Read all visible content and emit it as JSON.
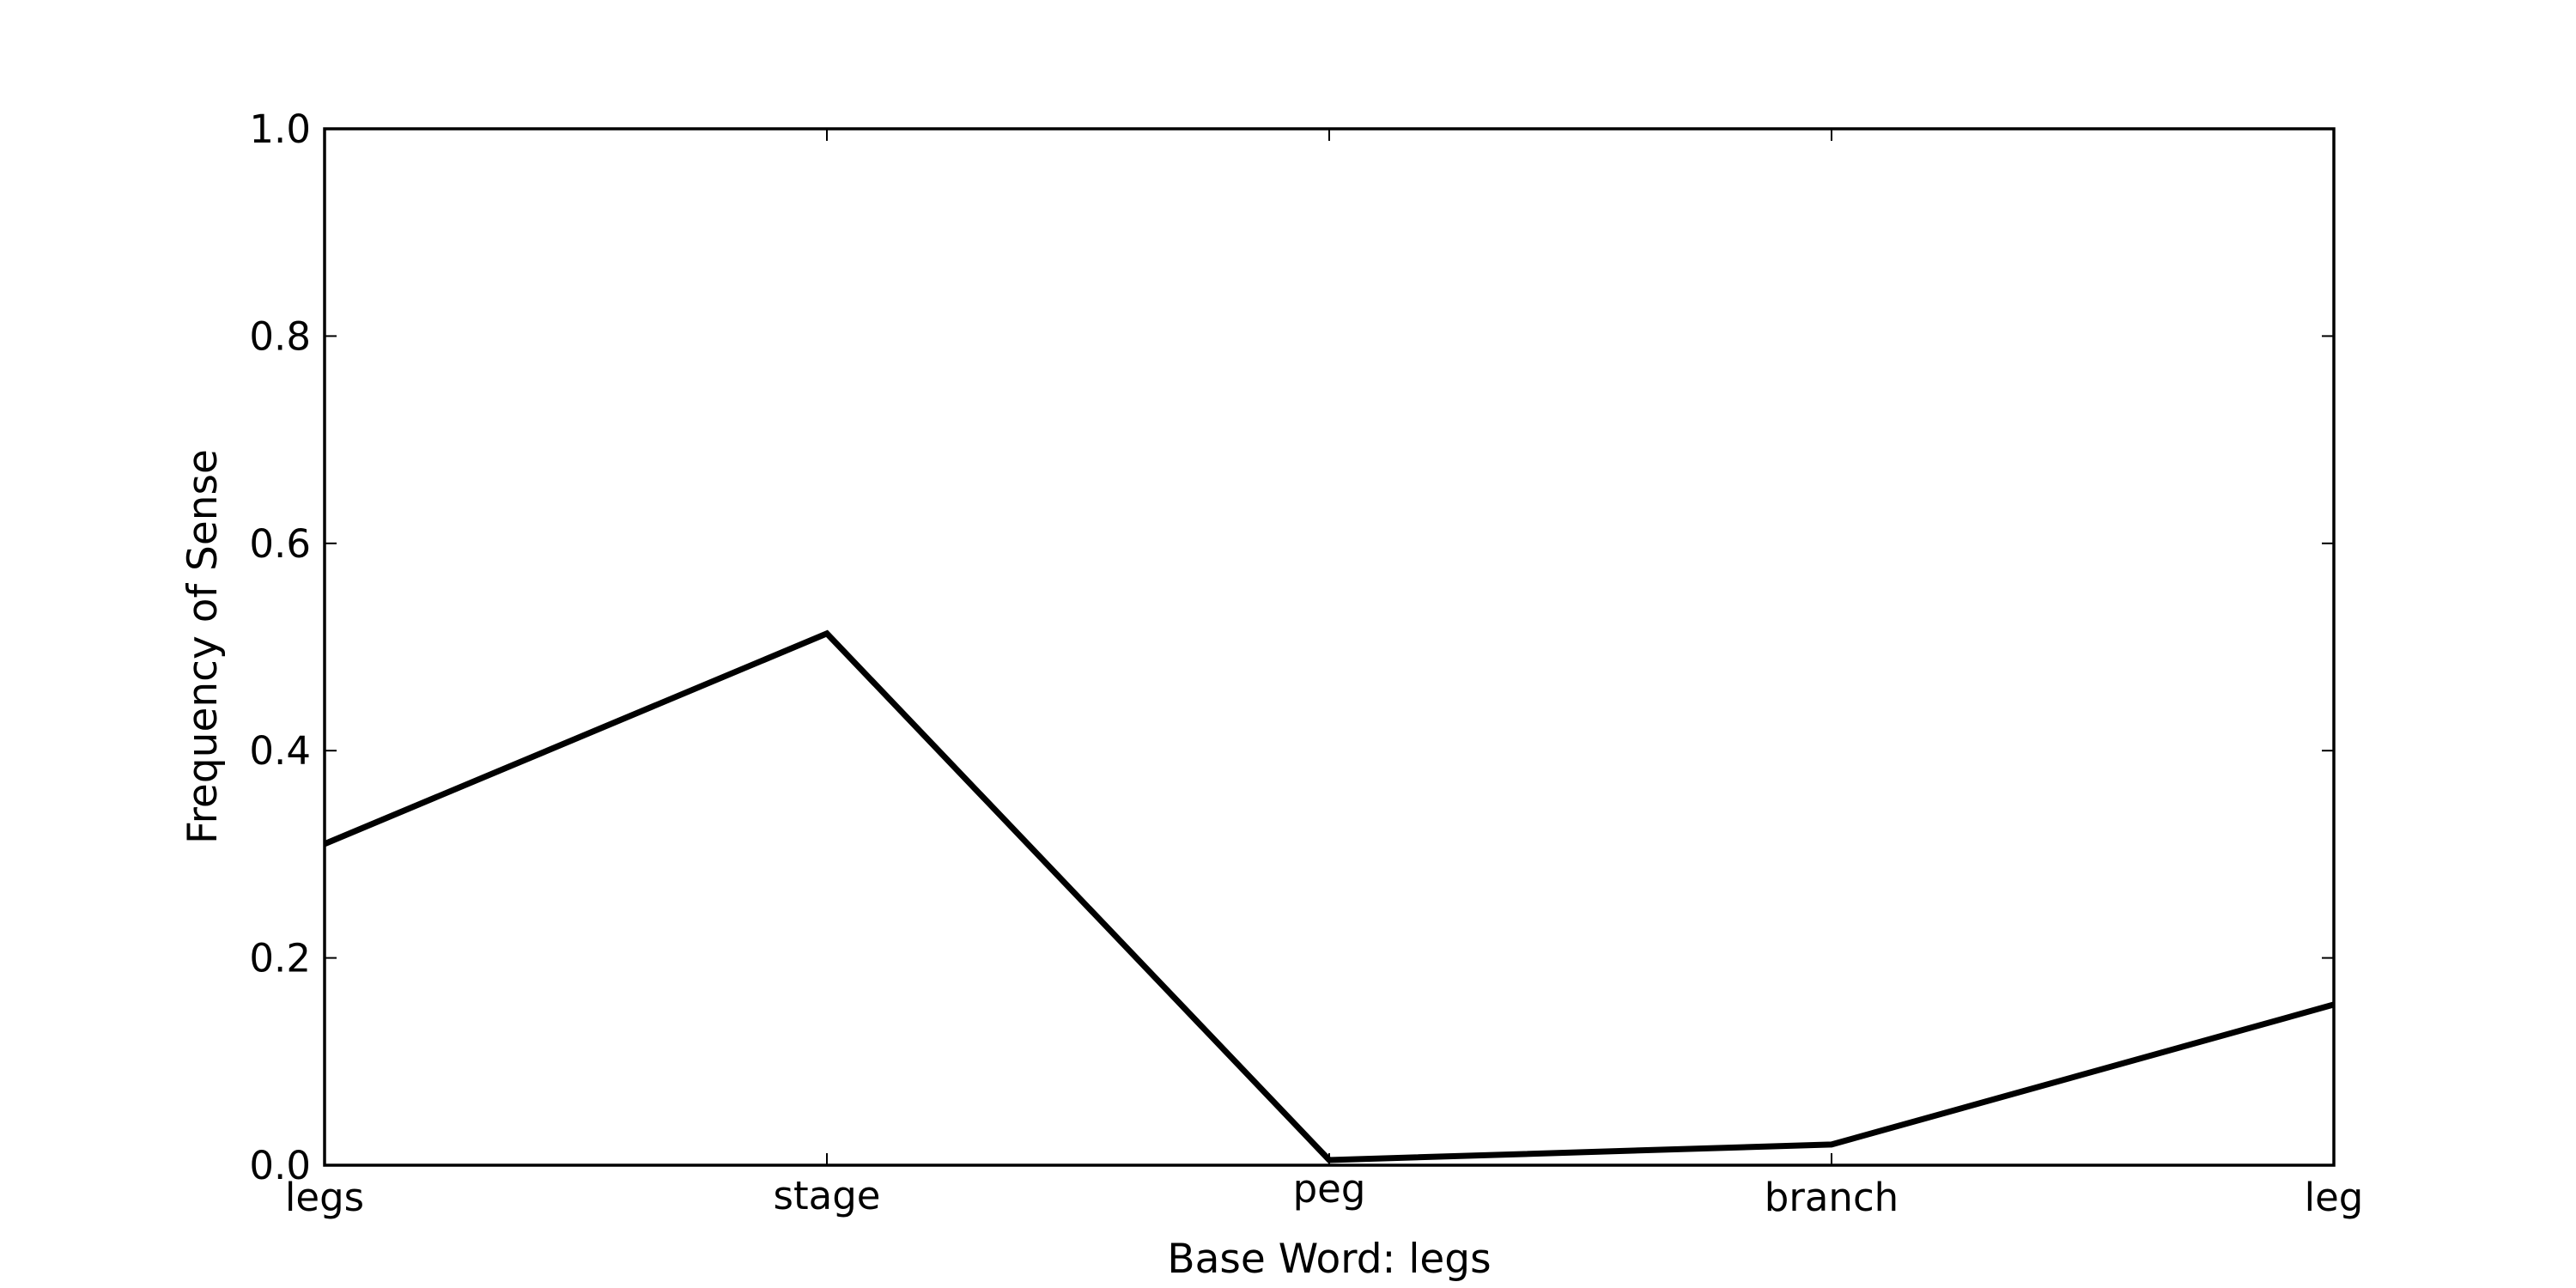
{
  "chart_data": {
    "type": "line",
    "title": "",
    "xlabel": "Base Word: legs",
    "ylabel": "Frequency of Sense",
    "categories": [
      "legs",
      "stage",
      "peg",
      "branch",
      "leg"
    ],
    "series": [
      {
        "values": [
          0.31,
          0.513,
          0.005,
          0.02,
          0.155
        ]
      }
    ],
    "ylim": [
      0,
      1.0
    ],
    "yticks": [
      "0.0",
      "0.2",
      "0.4",
      "0.6",
      "0.8",
      "1.0"
    ],
    "grid": false,
    "legend": "none",
    "line_color": "#000000"
  }
}
